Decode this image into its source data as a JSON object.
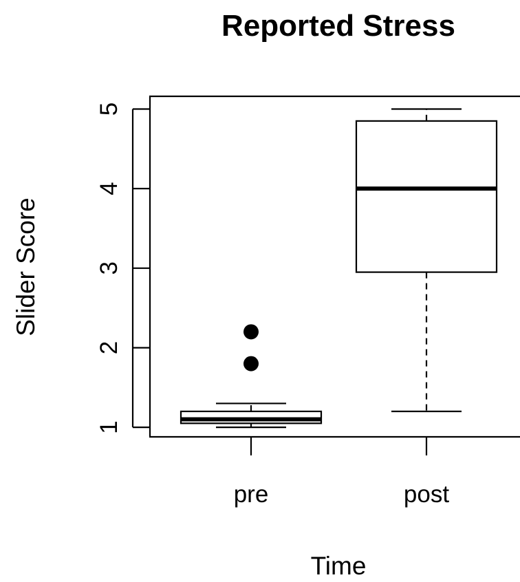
{
  "chart_data": {
    "type": "boxplot",
    "title": "Reported Stress",
    "xlabel": "Time",
    "ylabel": "Slider Score",
    "categories": [
      "pre",
      "post"
    ],
    "ylim": [
      0.88,
      5.16
    ],
    "yticks": [
      1,
      2,
      3,
      4,
      5
    ],
    "grid": false,
    "legend": "none",
    "boxes": [
      {
        "name": "pre",
        "whisker_low": 1.0,
        "q1": 1.05,
        "median": 1.1,
        "q3": 1.2,
        "whisker_high": 1.3,
        "outliers": [
          1.8,
          2.2
        ]
      },
      {
        "name": "post",
        "whisker_low": 1.2,
        "q1": 2.95,
        "median": 4.0,
        "q3": 4.85,
        "whisker_high": 5.0,
        "outliers": []
      }
    ],
    "colors": {
      "stroke": "#000000",
      "box_fill": "#ffffff",
      "background": "#ffffff"
    }
  }
}
